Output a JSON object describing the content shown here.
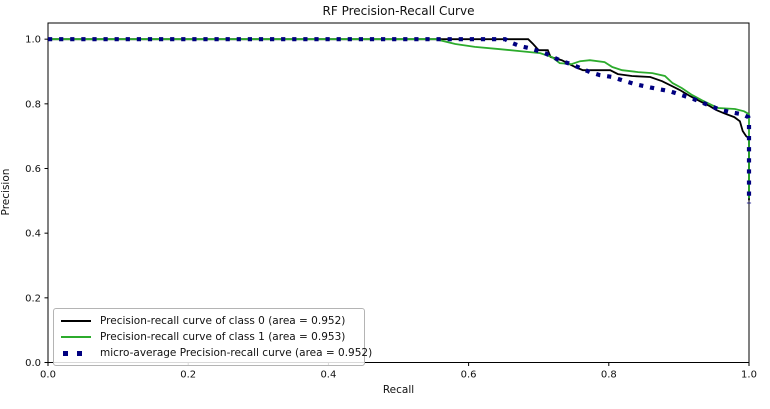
{
  "chart_data": {
    "type": "line",
    "title": "RF Precision-Recall Curve",
    "xlabel": "Recall",
    "ylabel": "Precision",
    "xlim": [
      0.0,
      1.0
    ],
    "ylim": [
      0.0,
      1.05
    ],
    "x_ticks": [
      "0.0",
      "0.2",
      "0.4",
      "0.6",
      "0.8",
      "1.0"
    ],
    "y_ticks": [
      "0.0",
      "0.2",
      "0.4",
      "0.6",
      "0.8",
      "1.0"
    ],
    "grid": false,
    "legend_position": "lower left",
    "axis_color": "#000000",
    "series": [
      {
        "name": "Precision-recall curve of class 0 (area = 0.952)",
        "area": 0.952,
        "color": "#000000",
        "style": "solid",
        "points": [
          [
            0.0,
            1.0
          ],
          [
            0.685,
            1.0
          ],
          [
            0.692,
            0.985
          ],
          [
            0.7,
            0.966
          ],
          [
            0.713,
            0.966
          ],
          [
            0.717,
            0.945
          ],
          [
            0.733,
            0.935
          ],
          [
            0.752,
            0.914
          ],
          [
            0.763,
            0.904
          ],
          [
            0.802,
            0.904
          ],
          [
            0.813,
            0.892
          ],
          [
            0.833,
            0.886
          ],
          [
            0.859,
            0.883
          ],
          [
            0.876,
            0.87
          ],
          [
            0.89,
            0.855
          ],
          [
            0.901,
            0.843
          ],
          [
            0.916,
            0.824
          ],
          [
            0.93,
            0.808
          ],
          [
            0.944,
            0.793
          ],
          [
            0.953,
            0.781
          ],
          [
            0.964,
            0.771
          ],
          [
            0.979,
            0.759
          ],
          [
            0.987,
            0.746
          ],
          [
            0.991,
            0.716
          ],
          [
            0.996,
            0.7
          ],
          [
            1.0,
            0.694
          ],
          [
            1.0,
            0.502
          ]
        ]
      },
      {
        "name": "Precision-recall curve of class 1 (area = 0.953)",
        "area": 0.953,
        "color": "#2cab2c",
        "style": "solid",
        "points": [
          [
            0.0,
            1.0
          ],
          [
            0.553,
            1.0
          ],
          [
            0.581,
            0.985
          ],
          [
            0.609,
            0.976
          ],
          [
            0.645,
            0.969
          ],
          [
            0.673,
            0.963
          ],
          [
            0.702,
            0.957
          ],
          [
            0.719,
            0.945
          ],
          [
            0.73,
            0.926
          ],
          [
            0.747,
            0.923
          ],
          [
            0.759,
            0.932
          ],
          [
            0.773,
            0.935
          ],
          [
            0.794,
            0.929
          ],
          [
            0.805,
            0.914
          ],
          [
            0.819,
            0.904
          ],
          [
            0.842,
            0.898
          ],
          [
            0.862,
            0.895
          ],
          [
            0.88,
            0.886
          ],
          [
            0.891,
            0.864
          ],
          [
            0.904,
            0.849
          ],
          [
            0.919,
            0.827
          ],
          [
            0.933,
            0.811
          ],
          [
            0.947,
            0.796
          ],
          [
            0.956,
            0.787
          ],
          [
            0.98,
            0.784
          ],
          [
            0.993,
            0.777
          ],
          [
            1.0,
            0.768
          ],
          [
            1.0,
            0.508
          ]
        ]
      },
      {
        "name": "micro-average Precision-recall curve (area = 0.952)",
        "area": 0.952,
        "color": "#000080",
        "style": "dotted",
        "points": [
          [
            0.0,
            1.0
          ],
          [
            0.652,
            1.0
          ],
          [
            0.662,
            0.988
          ],
          [
            0.673,
            0.979
          ],
          [
            0.685,
            0.973
          ],
          [
            0.696,
            0.966
          ],
          [
            0.709,
            0.957
          ],
          [
            0.72,
            0.945
          ],
          [
            0.733,
            0.932
          ],
          [
            0.746,
            0.923
          ],
          [
            0.759,
            0.911
          ],
          [
            0.773,
            0.898
          ],
          [
            0.787,
            0.889
          ],
          [
            0.805,
            0.883
          ],
          [
            0.819,
            0.873
          ],
          [
            0.837,
            0.861
          ],
          [
            0.856,
            0.852
          ],
          [
            0.87,
            0.846
          ],
          [
            0.887,
            0.839
          ],
          [
            0.904,
            0.827
          ],
          [
            0.921,
            0.815
          ],
          [
            0.939,
            0.799
          ],
          [
            0.956,
            0.784
          ],
          [
            0.973,
            0.774
          ],
          [
            0.99,
            0.768
          ],
          [
            0.999,
            0.759
          ],
          [
            1.0,
            0.75
          ],
          [
            1.0,
            0.492
          ]
        ]
      }
    ]
  }
}
